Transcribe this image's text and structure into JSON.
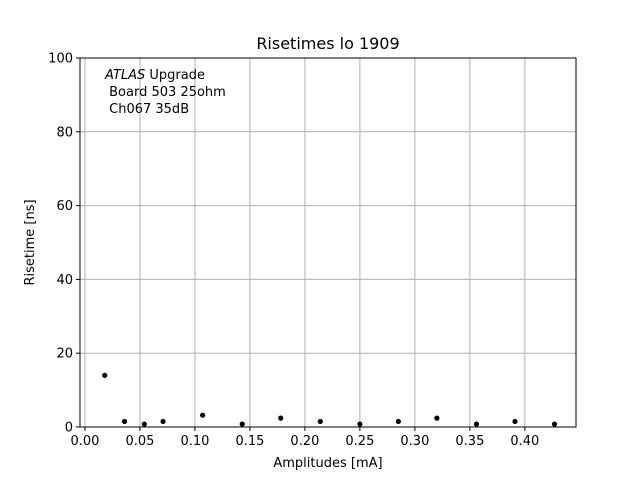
{
  "chart_data": {
    "type": "scatter",
    "title": "Risetimes lo 1909",
    "xlabel": "Amplitudes [mA]",
    "ylabel": "Risetime [ns]",
    "xlim": [
      -0.0045,
      0.4465
    ],
    "ylim": [
      0,
      100
    ],
    "grid": true,
    "marker_color": "#000000",
    "x_ticks": [
      0.0,
      0.05,
      0.1,
      0.15,
      0.2,
      0.25,
      0.3,
      0.35,
      0.4
    ],
    "x_tick_labels": [
      "0.00",
      "0.05",
      "0.10",
      "0.15",
      "0.20",
      "0.25",
      "0.30",
      "0.35",
      "0.40"
    ],
    "y_ticks": [
      0,
      20,
      40,
      60,
      80,
      100
    ],
    "y_tick_labels": [
      "0",
      "20",
      "40",
      "60",
      "80",
      "100"
    ],
    "points": [
      {
        "x": 0.018,
        "y": 14.0
      },
      {
        "x": 0.036,
        "y": 1.5
      },
      {
        "x": 0.054,
        "y": 0.8
      },
      {
        "x": 0.071,
        "y": 1.5
      },
      {
        "x": 0.107,
        "y": 3.2
      },
      {
        "x": 0.143,
        "y": 0.8
      },
      {
        "x": 0.178,
        "y": 2.4
      },
      {
        "x": 0.214,
        "y": 1.5
      },
      {
        "x": 0.25,
        "y": 0.8
      },
      {
        "x": 0.285,
        "y": 1.5
      },
      {
        "x": 0.32,
        "y": 2.4
      },
      {
        "x": 0.356,
        "y": 0.8
      },
      {
        "x": 0.391,
        "y": 1.5
      },
      {
        "x": 0.427,
        "y": 0.8
      }
    ],
    "annotation": {
      "line1_italic": "ATLAS",
      "line1_rest": " Upgrade",
      "line2": " Board 503 25ohm",
      "line3": " Ch067 35dB"
    }
  }
}
